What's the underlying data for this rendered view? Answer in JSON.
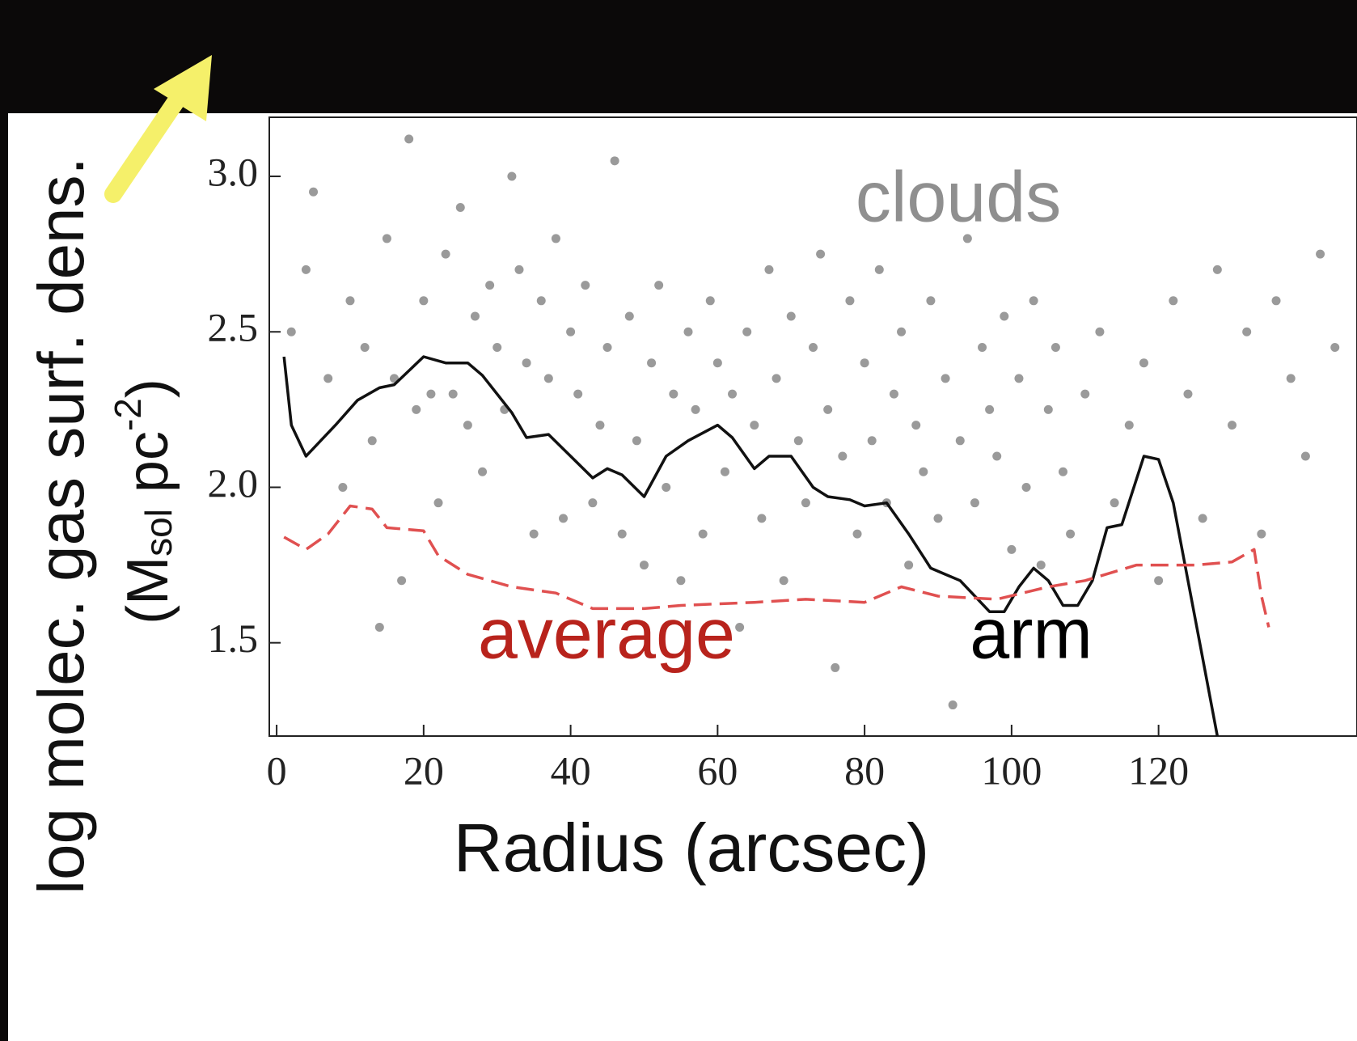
{
  "chart_data": {
    "type": "scatter",
    "x_label": "Radius (arcsec)",
    "y_label": "log molec. gas surf. dens.",
    "y_unit": {
      "open": "(M",
      "sub": "sol",
      "mid": " pc",
      "sup": "-2",
      "close": ")"
    },
    "xlim": [
      -1,
      147
    ],
    "ylim": [
      1.2,
      3.19
    ],
    "xticks": [
      0,
      20,
      40,
      60,
      80,
      100,
      120
    ],
    "yticks": [
      {
        "value": 1.5,
        "label": "1.5"
      },
      {
        "value": 2,
        "label": "2.0"
      },
      {
        "value": 2.5,
        "label": "2.5"
      },
      {
        "value": 3,
        "label": "3.0"
      }
    ],
    "series": [
      {
        "name": "clouds",
        "type": "scatter",
        "color": "#9a9a9a",
        "x": [
          2,
          4,
          5,
          7,
          9,
          10,
          12,
          13,
          14,
          15,
          16,
          17,
          18,
          19,
          20,
          21,
          22,
          23,
          24,
          25,
          26,
          27,
          28,
          29,
          30,
          31,
          32,
          33,
          34,
          35,
          36,
          37,
          38,
          39,
          40,
          41,
          42,
          43,
          44,
          45,
          46,
          47,
          48,
          49,
          50,
          51,
          52,
          53,
          54,
          55,
          56,
          57,
          58,
          59,
          60,
          61,
          62,
          63,
          64,
          65,
          66,
          67,
          68,
          69,
          70,
          71,
          72,
          73,
          74,
          75,
          76,
          77,
          78,
          79,
          80,
          81,
          82,
          83,
          84,
          85,
          86,
          87,
          88,
          89,
          90,
          91,
          92,
          93,
          94,
          95,
          96,
          97,
          98,
          99,
          100,
          101,
          102,
          103,
          104,
          105,
          106,
          107,
          108,
          110,
          112,
          114,
          116,
          118,
          120,
          122,
          124,
          126,
          128,
          130,
          132,
          134,
          136,
          138,
          140,
          142,
          144
        ],
        "values": [
          2.5,
          2.7,
          2.95,
          2.35,
          2.0,
          2.6,
          2.45,
          2.15,
          1.55,
          2.8,
          2.35,
          1.7,
          3.12,
          2.25,
          2.6,
          2.3,
          1.95,
          2.75,
          2.3,
          2.9,
          2.2,
          2.55,
          2.05,
          2.65,
          2.45,
          2.25,
          3.0,
          2.7,
          2.4,
          1.85,
          2.6,
          2.35,
          2.8,
          1.9,
          2.5,
          2.3,
          2.65,
          1.95,
          2.2,
          2.45,
          3.05,
          1.85,
          2.55,
          2.15,
          1.75,
          2.4,
          2.65,
          2.0,
          2.3,
          1.7,
          2.5,
          2.25,
          1.85,
          2.6,
          2.4,
          2.05,
          2.3,
          1.55,
          2.5,
          2.2,
          1.9,
          2.7,
          2.35,
          1.7,
          2.55,
          2.15,
          1.95,
          2.45,
          2.75,
          2.25,
          1.42,
          2.1,
          2.6,
          1.85,
          2.4,
          2.15,
          2.7,
          1.95,
          2.3,
          2.5,
          1.75,
          2.2,
          2.05,
          2.6,
          1.9,
          2.35,
          1.3,
          2.15,
          2.8,
          1.95,
          2.45,
          2.25,
          2.1,
          2.55,
          1.8,
          2.35,
          2.0,
          2.6,
          1.75,
          2.25,
          2.45,
          2.05,
          1.85,
          2.3,
          2.5,
          1.95,
          2.2,
          2.4,
          1.7,
          2.6,
          2.3,
          1.9,
          2.7,
          2.2,
          2.5,
          1.85,
          2.6,
          2.35,
          2.1,
          2.75,
          2.45
        ]
      },
      {
        "name": "arm",
        "type": "line",
        "color": "#111111",
        "x": [
          1,
          2,
          4,
          8,
          11,
          14,
          16,
          20,
          23,
          26,
          28,
          32,
          34,
          37,
          40,
          43,
          45,
          47,
          50,
          53,
          56,
          60,
          62,
          65,
          67,
          70,
          73,
          75,
          78,
          80,
          83,
          86,
          89,
          91,
          93,
          97,
          99,
          101,
          103,
          105,
          107,
          109,
          111,
          113,
          115,
          118,
          120,
          122,
          124,
          126,
          128
        ],
        "values": [
          2.42,
          2.2,
          2.1,
          2.2,
          2.28,
          2.32,
          2.33,
          2.42,
          2.4,
          2.4,
          2.36,
          2.24,
          2.16,
          2.17,
          2.1,
          2.03,
          2.06,
          2.04,
          1.97,
          2.1,
          2.15,
          2.2,
          2.16,
          2.06,
          2.1,
          2.1,
          2.0,
          1.97,
          1.96,
          1.94,
          1.95,
          1.85,
          1.74,
          1.72,
          1.7,
          1.6,
          1.6,
          1.68,
          1.74,
          1.7,
          1.62,
          1.62,
          1.7,
          1.87,
          1.88,
          2.1,
          2.09,
          1.95,
          1.7,
          1.45,
          1.2
        ]
      },
      {
        "name": "average",
        "type": "line",
        "line_style": "dashed",
        "color": "#e05050",
        "x": [
          1,
          4,
          7,
          10,
          13,
          15,
          20,
          22,
          26,
          32,
          38,
          43,
          50,
          55,
          65,
          72,
          80,
          85,
          90,
          98,
          105,
          110,
          117,
          125,
          130,
          133,
          134,
          135
        ],
        "values": [
          1.84,
          1.8,
          1.85,
          1.94,
          1.93,
          1.87,
          1.86,
          1.78,
          1.72,
          1.68,
          1.66,
          1.61,
          1.61,
          1.62,
          1.63,
          1.64,
          1.63,
          1.68,
          1.65,
          1.64,
          1.68,
          1.7,
          1.75,
          1.75,
          1.76,
          1.8,
          1.65,
          1.55
        ]
      }
    ]
  }
}
